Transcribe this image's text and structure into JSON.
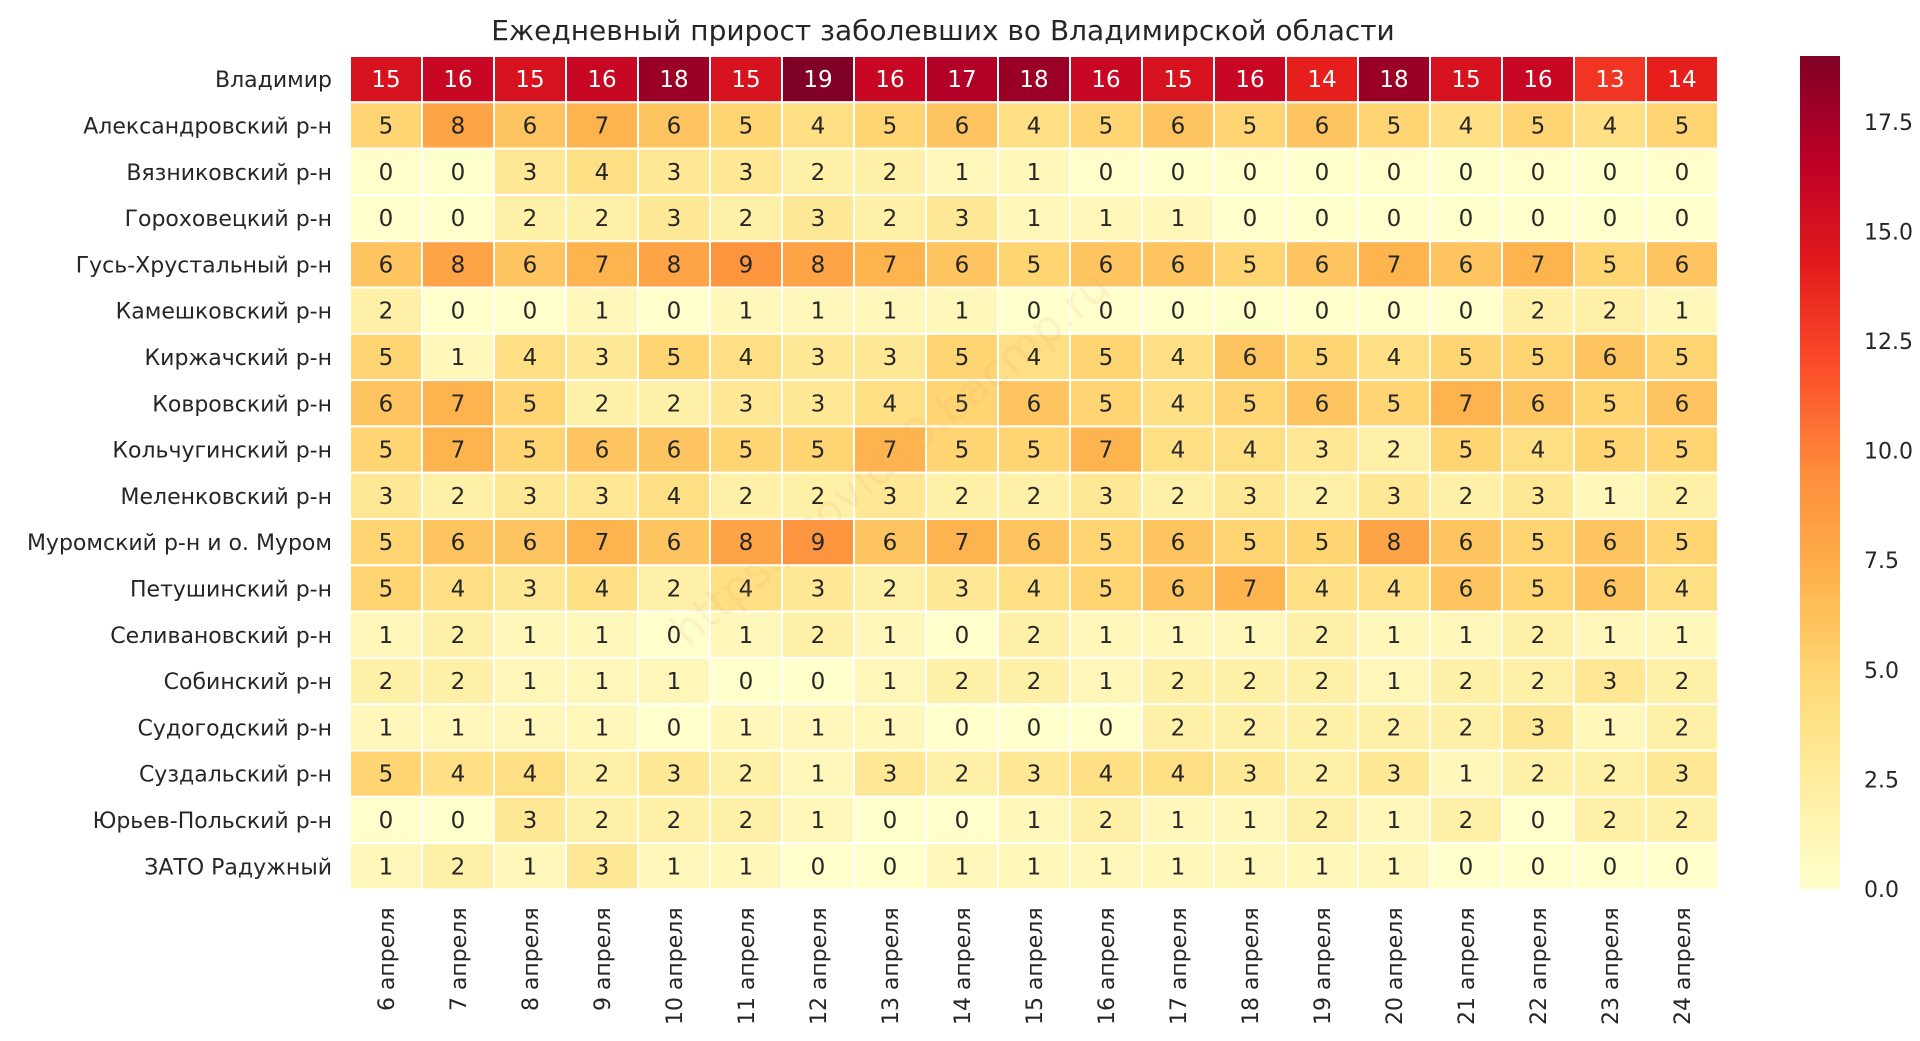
{
  "chart_data": {
    "type": "heatmap",
    "title": "Ежедневный прирост заболевших во Владимирской области",
    "xlabel": "",
    "ylabel": "",
    "rows": [
      "Владимир",
      "Александровский р-н",
      "Вязниковский р-н",
      "Гороховецкий р-н",
      "Гусь-Хрустальный р-н",
      "Камешковский р-н",
      "Киржачский р-н",
      "Ковровский р-н",
      "Кольчугинский р-н",
      "Меленковский р-н",
      "Муромский р-н и о. Муром",
      "Петушинский р-н",
      "Селивановский р-н",
      "Собинский р-н",
      "Судогодский р-н",
      "Суздальский р-н",
      "Юрьев-Польский р-н",
      "ЗАТО Радужный"
    ],
    "columns": [
      "6 апреля",
      "7 апреля",
      "8 апреля",
      "9 апреля",
      "10 апреля",
      "11 апреля",
      "12 апреля",
      "13 апреля",
      "14 апреля",
      "15 апреля",
      "16 апреля",
      "17 апреля",
      "18 апреля",
      "19 апреля",
      "20 апреля",
      "21 апреля",
      "22 апреля",
      "23 апреля",
      "24 апреля"
    ],
    "values": [
      [
        15,
        16,
        15,
        16,
        18,
        15,
        19,
        16,
        17,
        18,
        16,
        15,
        16,
        14,
        18,
        15,
        16,
        13,
        14
      ],
      [
        5,
        8,
        6,
        7,
        6,
        5,
        4,
        5,
        6,
        4,
        5,
        6,
        5,
        6,
        5,
        4,
        5,
        4,
        5
      ],
      [
        0,
        0,
        3,
        4,
        3,
        3,
        2,
        2,
        1,
        1,
        0,
        0,
        0,
        0,
        0,
        0,
        0,
        0,
        0
      ],
      [
        0,
        0,
        2,
        2,
        3,
        2,
        3,
        2,
        3,
        1,
        1,
        1,
        0,
        0,
        0,
        0,
        0,
        0,
        0
      ],
      [
        6,
        8,
        6,
        7,
        8,
        9,
        8,
        7,
        6,
        5,
        6,
        6,
        5,
        6,
        7,
        6,
        7,
        5,
        6
      ],
      [
        2,
        0,
        0,
        1,
        0,
        1,
        1,
        1,
        1,
        0,
        0,
        0,
        0,
        0,
        0,
        0,
        2,
        2,
        1
      ],
      [
        5,
        1,
        4,
        3,
        5,
        4,
        3,
        3,
        5,
        4,
        5,
        4,
        6,
        5,
        4,
        5,
        5,
        6,
        5
      ],
      [
        6,
        7,
        5,
        2,
        2,
        3,
        3,
        4,
        5,
        6,
        5,
        4,
        5,
        6,
        5,
        7,
        6,
        5,
        6
      ],
      [
        5,
        7,
        5,
        6,
        6,
        5,
        5,
        7,
        5,
        5,
        7,
        4,
        4,
        3,
        2,
        5,
        4,
        5,
        5
      ],
      [
        3,
        2,
        3,
        3,
        4,
        2,
        2,
        3,
        2,
        2,
        3,
        2,
        3,
        2,
        3,
        2,
        3,
        1,
        2
      ],
      [
        5,
        6,
        6,
        7,
        6,
        8,
        9,
        6,
        7,
        6,
        5,
        6,
        5,
        5,
        8,
        6,
        5,
        6,
        5
      ],
      [
        5,
        4,
        3,
        4,
        2,
        4,
        3,
        2,
        3,
        4,
        5,
        6,
        7,
        4,
        4,
        6,
        5,
        6,
        4
      ],
      [
        1,
        2,
        1,
        1,
        0,
        1,
        2,
        1,
        0,
        2,
        1,
        1,
        1,
        2,
        1,
        1,
        2,
        1,
        1
      ],
      [
        2,
        2,
        1,
        1,
        1,
        0,
        0,
        1,
        2,
        2,
        1,
        2,
        2,
        2,
        1,
        2,
        2,
        3,
        2
      ],
      [
        1,
        1,
        1,
        1,
        0,
        1,
        1,
        1,
        0,
        0,
        0,
        2,
        2,
        2,
        2,
        2,
        3,
        1,
        2
      ],
      [
        5,
        4,
        4,
        2,
        3,
        2,
        1,
        3,
        2,
        3,
        4,
        4,
        3,
        2,
        3,
        1,
        2,
        2,
        3
      ],
      [
        0,
        0,
        3,
        2,
        2,
        2,
        1,
        0,
        0,
        1,
        2,
        1,
        1,
        2,
        1,
        2,
        0,
        2,
        2
      ],
      [
        1,
        2,
        1,
        3,
        1,
        1,
        0,
        0,
        1,
        1,
        1,
        1,
        1,
        1,
        1,
        0,
        0,
        0,
        0
      ]
    ],
    "vmin": 0,
    "vmax": 19,
    "colormap": "YlOrRd",
    "colorbar_ticks": [
      "0.0",
      "2.5",
      "5.0",
      "7.5",
      "10.0",
      "12.5",
      "15.0",
      "17.5"
    ],
    "grid": false,
    "legend": "colorbar-right"
  },
  "watermark": "https://covid19.bacmp.ru"
}
